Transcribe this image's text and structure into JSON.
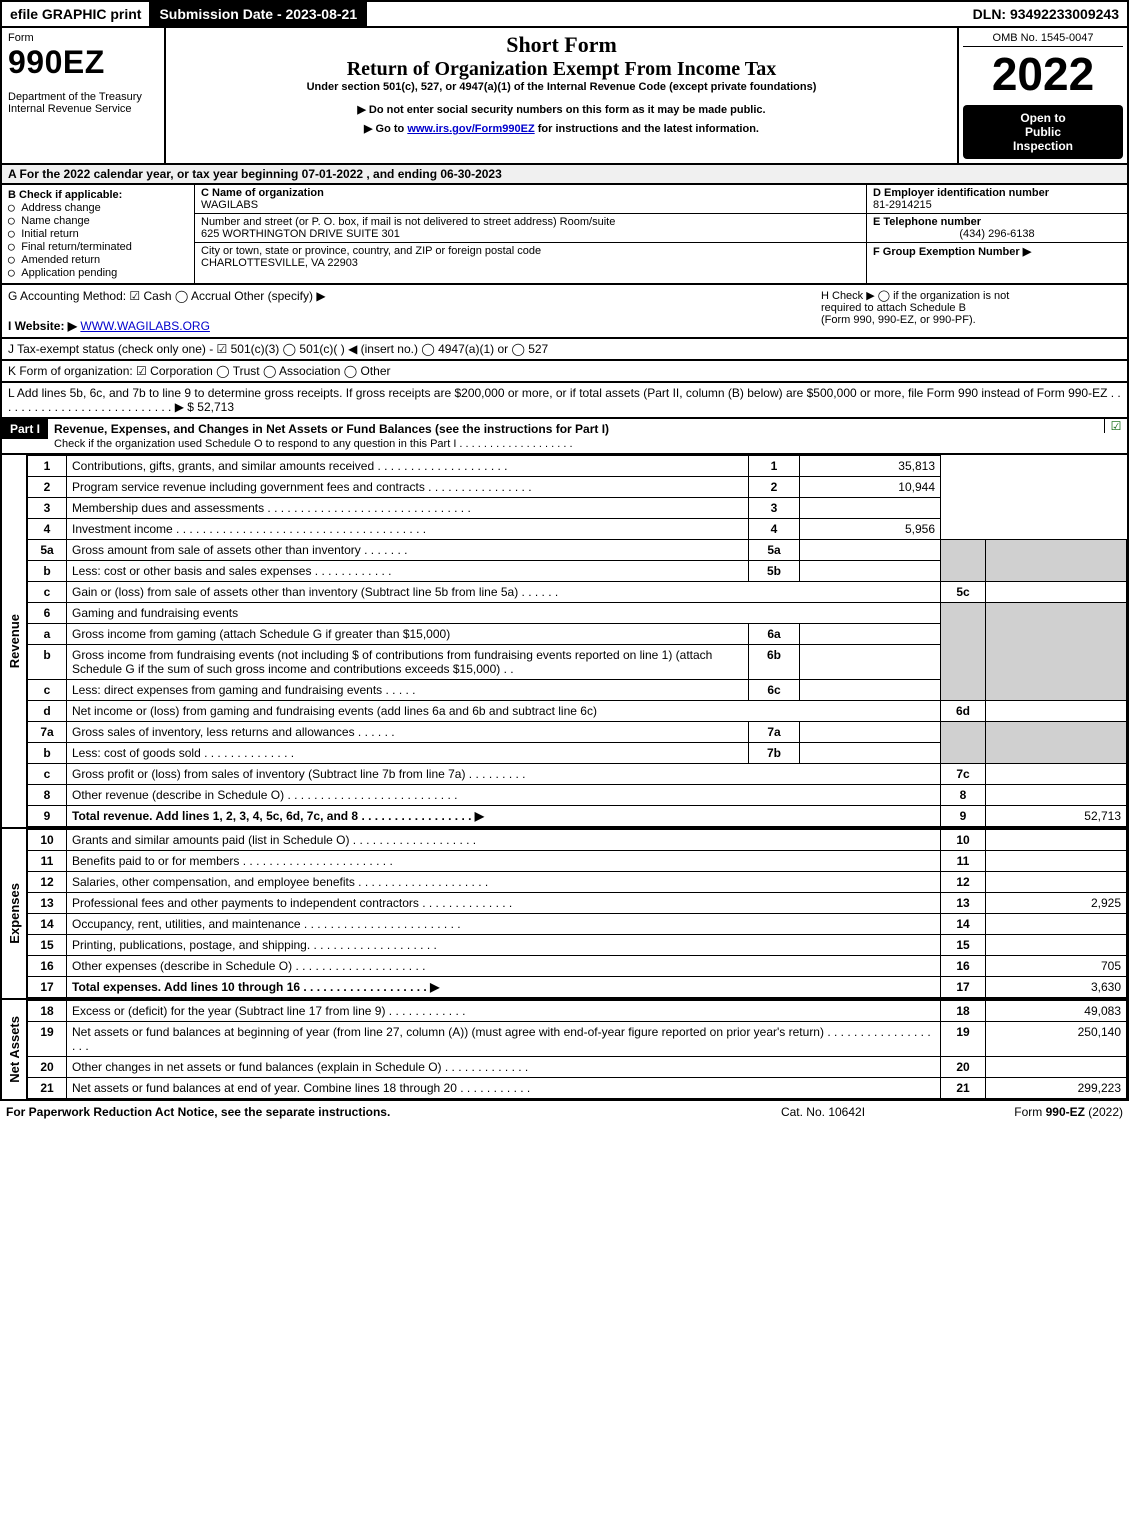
{
  "header": {
    "efile": "efile GRAPHIC print",
    "submission": "Submission Date - 2023-08-21",
    "dln": "DLN: 93492233009243"
  },
  "top": {
    "form_label": "Form",
    "form_name": "990EZ",
    "dept1": "Department of the Treasury",
    "dept2": "Internal Revenue Service",
    "short_form": "Short Form",
    "title": "Return of Organization Exempt From Income Tax",
    "subtitle": "Under section 501(c), 527, or 4947(a)(1) of the Internal Revenue Code (except private foundations)",
    "warn1": "▶ Do not enter social security numbers on this form as it may be made public.",
    "warn2_pre": "▶ Go to ",
    "warn2_link": "www.irs.gov/Form990EZ",
    "warn2_post": " for instructions and the latest information.",
    "omb": "OMB No. 1545-0047",
    "year": "2022",
    "open1": "Open to",
    "open2": "Public",
    "open3": "Inspection"
  },
  "A": "A  For the 2022 calendar year, or tax year beginning 07-01-2022 , and ending 06-30-2023",
  "B": {
    "label": "B  Check if applicable:",
    "opts": [
      "Address change",
      "Name change",
      "Initial return",
      "Final return/terminated",
      "Amended return",
      "Application pending"
    ]
  },
  "C": {
    "label": "C Name of organization",
    "name": "WAGILABS",
    "addr_label": "Number and street (or P. O. box, if mail is not delivered to street address)        Room/suite",
    "addr": "625 WORTHINGTON DRIVE SUITE 301",
    "city_label": "City or town, state or province, country, and ZIP or foreign postal code",
    "city": "CHARLOTTESVILLE, VA  22903"
  },
  "D": {
    "label": "D Employer identification number",
    "val": "81-2914215"
  },
  "E": {
    "label": "E Telephone number",
    "val": "(434) 296-6138"
  },
  "F": {
    "label": "F Group Exemption Number  ▶"
  },
  "G": {
    "label": "G Accounting Method:   ☑ Cash   ◯ Accrual   Other (specify) ▶"
  },
  "H": {
    "l1": "H  Check ▶  ◯  if the organization is not",
    "l2": "required to attach Schedule B",
    "l3": "(Form 990, 990-EZ, or 990-PF)."
  },
  "I": {
    "pre": "I Website: ▶",
    "link": "WWW.WAGILABS.ORG"
  },
  "J": "J Tax-exempt status (check only one) -  ☑ 501(c)(3)  ◯ 501(c)(  ) ◀ (insert no.)  ◯ 4947(a)(1) or  ◯ 527",
  "K": "K Form of organization:   ☑ Corporation   ◯ Trust   ◯ Association   ◯ Other",
  "L": {
    "text": "L Add lines 5b, 6c, and 7b to line 9 to determine gross receipts. If gross receipts are $200,000 or more, or if total assets (Part II, column (B) below) are $500,000 or more, file Form 990 instead of Form 990-EZ  .  .  .  .  .  .  .  .  .  .  .  .  .  .  .  .  .  .  .  .  .  .  .  .  .  .  .    ▶",
    "val": "$ 52,713"
  },
  "partI": {
    "label": "Part I",
    "title": "Revenue, Expenses, and Changes in Net Assets or Fund Balances (see the instructions for Part I)",
    "sub": "Check if the organization used Schedule O to respond to any question in this Part I  .  .  .  .  .  .  .  .  .  .  .  .  .  .  .  .  .  .  . ",
    "chk": "☑"
  },
  "revenue_side": "Revenue",
  "expenses_side": "Expenses",
  "netassets_side": "Net Assets",
  "lines": {
    "1": {
      "n": "1",
      "txt": "Contributions, gifts, grants, and similar amounts received  .  .  .  .  .  .  .  .  .  .  .  .  .  .  .  .  .  .  .  .",
      "c": "1",
      "v": "35,813"
    },
    "2": {
      "n": "2",
      "txt": "Program service revenue including government fees and contracts  .  .  .  .  .  .  .  .  .  .  .  .  .  .  .  .",
      "c": "2",
      "v": "10,944"
    },
    "3": {
      "n": "3",
      "txt": "Membership dues and assessments  .  .  .  .  .  .  .  .  .  .  .  .  .  .  .  .  .  .  .  .  .  .  .  .  .  .  .  .  .  .  .",
      "c": "3",
      "v": ""
    },
    "4": {
      "n": "4",
      "txt": "Investment income  .  .  .  .  .  .  .  .  .  .  .  .  .  .  .  .  .  .  .  .  .  .  .  .  .  .  .  .  .  .  .  .  .  .  .  .  .  .",
      "c": "4",
      "v": "5,956"
    },
    "5a": {
      "n": "5a",
      "txt": "Gross amount from sale of assets other than inventory  .  .  .  .  .  .  .",
      "ic": "5a",
      "iv": ""
    },
    "5b": {
      "n": "b",
      "txt": "Less: cost or other basis and sales expenses  .  .  .  .  .  .  .  .  .  .  .  .",
      "ic": "5b",
      "iv": ""
    },
    "5c": {
      "n": "c",
      "txt": "Gain or (loss) from sale of assets other than inventory (Subtract line 5b from line 5a)  .  .  .  .  .  .",
      "c": "5c",
      "v": ""
    },
    "6": {
      "n": "6",
      "txt": "Gaming and fundraising events"
    },
    "6a": {
      "n": "a",
      "txt": "Gross income from gaming (attach Schedule G if greater than $15,000)",
      "ic": "6a",
      "iv": ""
    },
    "6b": {
      "n": "b",
      "txt": "Gross income from fundraising events (not including $                              of contributions from fundraising events reported on line 1) (attach Schedule G if the sum of such gross income and contributions exceeds $15,000)    .   .",
      "ic": "6b",
      "iv": ""
    },
    "6c": {
      "n": "c",
      "txt": "Less: direct expenses from gaming and fundraising events  .  .  .  .  .",
      "ic": "6c",
      "iv": ""
    },
    "6d": {
      "n": "d",
      "txt": "Net income or (loss) from gaming and fundraising events (add lines 6a and 6b and subtract line 6c)",
      "c": "6d",
      "v": ""
    },
    "7a": {
      "n": "7a",
      "txt": "Gross sales of inventory, less returns and allowances  .  .  .  .  .  .",
      "ic": "7a",
      "iv": ""
    },
    "7b": {
      "n": "b",
      "txt": "Less: cost of goods sold         .   .   .   .   .   .   .   .   .   .   .   .   .   .",
      "ic": "7b",
      "iv": ""
    },
    "7c": {
      "n": "c",
      "txt": "Gross profit or (loss) from sales of inventory (Subtract line 7b from line 7a)  .  .  .  .  .  .  .  .  .",
      "c": "7c",
      "v": ""
    },
    "8": {
      "n": "8",
      "txt": "Other revenue (describe in Schedule O)  .  .  .  .  .  .  .  .  .  .  .  .  .  .  .  .  .  .  .  .  .  .  .  .  .  .",
      "c": "8",
      "v": ""
    },
    "9": {
      "n": "9",
      "txt": "Total revenue. Add lines 1, 2, 3, 4, 5c, 6d, 7c, and 8    .   .   .   .   .   .   .   .   .   .   .   .   .   .   .   .   . ▶",
      "c": "9",
      "v": "52,713",
      "bold": true
    },
    "10": {
      "n": "10",
      "txt": "Grants and similar amounts paid (list in Schedule O)  .  .  .  .  .  .  .  .  .  .  .  .  .  .  .  .  .  .  .",
      "c": "10",
      "v": ""
    },
    "11": {
      "n": "11",
      "txt": "Benefits paid to or for members        .   .   .   .   .   .   .   .   .   .   .   .   .   .   .   .   .   .   .   .   .   .   .",
      "c": "11",
      "v": ""
    },
    "12": {
      "n": "12",
      "txt": "Salaries, other compensation, and employee benefits .  .  .  .  .  .  .  .  .  .  .  .  .  .  .  .  .  .  .  .",
      "c": "12",
      "v": ""
    },
    "13": {
      "n": "13",
      "txt": "Professional fees and other payments to independent contractors  .  .  .  .  .  .  .  .  .  .  .  .  .  .",
      "c": "13",
      "v": "2,925"
    },
    "14": {
      "n": "14",
      "txt": "Occupancy, rent, utilities, and maintenance .  .  .  .  .  .  .  .  .  .  .  .  .  .  .  .  .  .  .  .  .  .  .  .",
      "c": "14",
      "v": ""
    },
    "15": {
      "n": "15",
      "txt": "Printing, publications, postage, and shipping.   .   .   .   .   .   .   .   .   .   .   .   .   .   .   .   .   .   .   .",
      "c": "15",
      "v": ""
    },
    "16": {
      "n": "16",
      "txt": "Other expenses (describe in Schedule O)       .   .   .   .   .   .   .   .   .   .   .   .   .   .   .   .   .   .   .   .",
      "c": "16",
      "v": "705"
    },
    "17": {
      "n": "17",
      "txt": "Total expenses. Add lines 10 through 16       .   .   .   .   .   .   .   .   .   .   .   .   .   .   .   .   .   .   . ▶",
      "c": "17",
      "v": "3,630",
      "bold": true
    },
    "18": {
      "n": "18",
      "txt": "Excess or (deficit) for the year (Subtract line 17 from line 9)         .   .   .   .   .   .   .   .   .   .   .   .",
      "c": "18",
      "v": "49,083"
    },
    "19": {
      "n": "19",
      "txt": "Net assets or fund balances at beginning of year (from line 27, column (A)) (must agree with end-of-year figure reported on prior year's return) .   .   .   .   .   .   .   .   .   .   .   .   .   .   .   .   .   .   .",
      "c": "19",
      "v": "250,140"
    },
    "20": {
      "n": "20",
      "txt": "Other changes in net assets or fund balances (explain in Schedule O)  .  .  .  .  .  .  .  .  .  .  .  .  .",
      "c": "20",
      "v": ""
    },
    "21": {
      "n": "21",
      "txt": "Net assets or fund balances at end of year. Combine lines 18 through 20  .  .  .  .  .  .  .  .  .  .  .",
      "c": "21",
      "v": "299,223"
    }
  },
  "footer": {
    "l": "For Paperwork Reduction Act Notice, see the separate instructions.",
    "c": "Cat. No. 10642I",
    "r_pre": "Form ",
    "r_form": "990-EZ",
    "r_post": " (2022)"
  },
  "colors": {
    "black": "#000000",
    "shade": "#d0d0d0",
    "link": "#0000cc",
    "check": "#2a8a2a",
    "boxA_bg": "#f0f0f0"
  }
}
